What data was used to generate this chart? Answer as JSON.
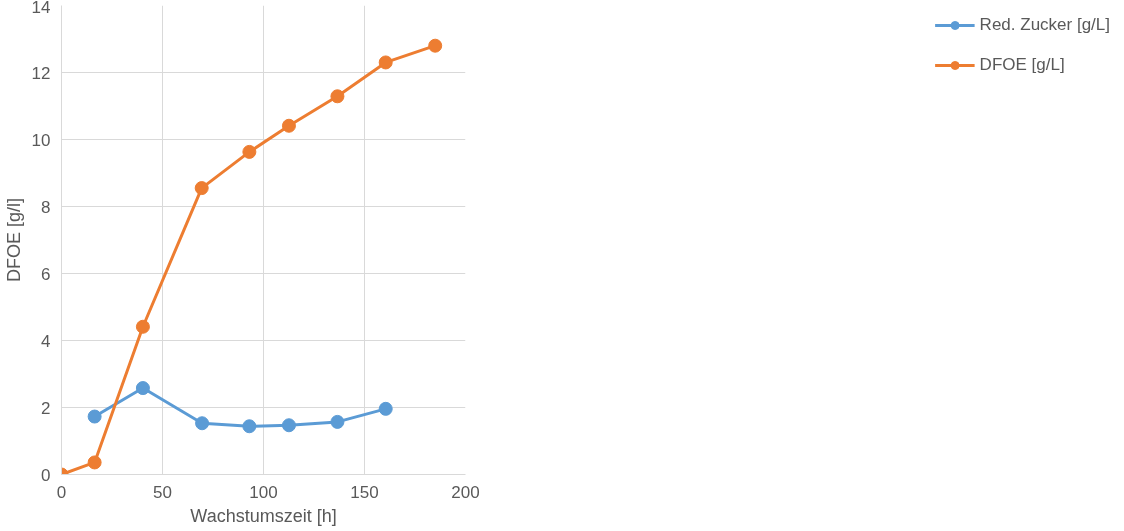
{
  "chart_data": {
    "type": "line",
    "xlabel": "Wachstumszeit [h]",
    "ylabel": "DFOE [g/l]",
    "xlim": [
      0,
      200
    ],
    "xticks": [
      0,
      50,
      100,
      150,
      200
    ],
    "ylim": [
      0,
      14
    ],
    "yticks": [
      0,
      2,
      4,
      6,
      8,
      10,
      12,
      14
    ],
    "grid": true,
    "legend": "right",
    "marker": "circle",
    "line_style": "solid",
    "series": [
      {
        "name": "Red. Zucker [g/L]",
        "color": "#5b9bd5",
        "x": [
          16.4,
          40.3,
          69.6,
          93,
          112.6,
          136.6,
          160.5
        ],
        "values": [
          1.73,
          2.58,
          1.53,
          1.44,
          1.47,
          1.57,
          1.96
        ]
      },
      {
        "name": "DFOE [g/L]",
        "color": "#ed7d31",
        "x": [
          0,
          16.4,
          40.3,
          69.4,
          93,
          112.6,
          136.6,
          160.5,
          185
        ],
        "values": [
          0,
          0.36,
          4.41,
          8.55,
          9.63,
          10.41,
          11.29,
          12.3,
          12.8
        ]
      }
    ]
  }
}
